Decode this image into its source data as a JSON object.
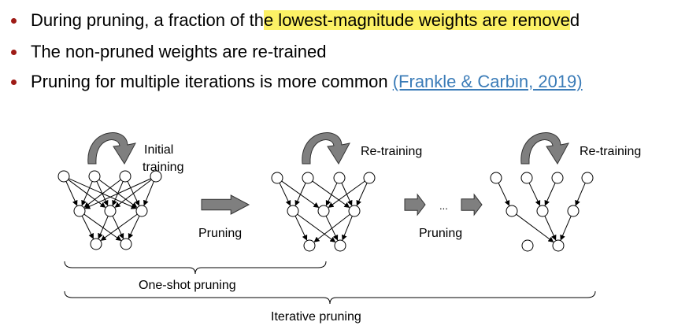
{
  "bullets": [
    {
      "pre": "During pruning, a fraction of th",
      "highlight": "e lowest-magnitude weights are remove",
      "post": "d"
    },
    {
      "text": "The non-pruned weights are re-trained"
    },
    {
      "text": "Pruning for multiple iterations is more common ",
      "citation": "(Frankle & Carbin, 2019)"
    }
  ],
  "diagram": {
    "network_labels": [
      "Initial",
      "training",
      "Re-training",
      "Re-training"
    ],
    "step_labels": [
      "Pruning",
      "Pruning"
    ],
    "ellipsis": "...",
    "brace_labels": [
      "One-shot pruning",
      "Iterative pruning"
    ]
  },
  "colors": {
    "bullet": "#9e1b16",
    "highlight": "#fcf165",
    "citation": "#3b7cb8",
    "arrow_fill": "#7f7f7f"
  }
}
